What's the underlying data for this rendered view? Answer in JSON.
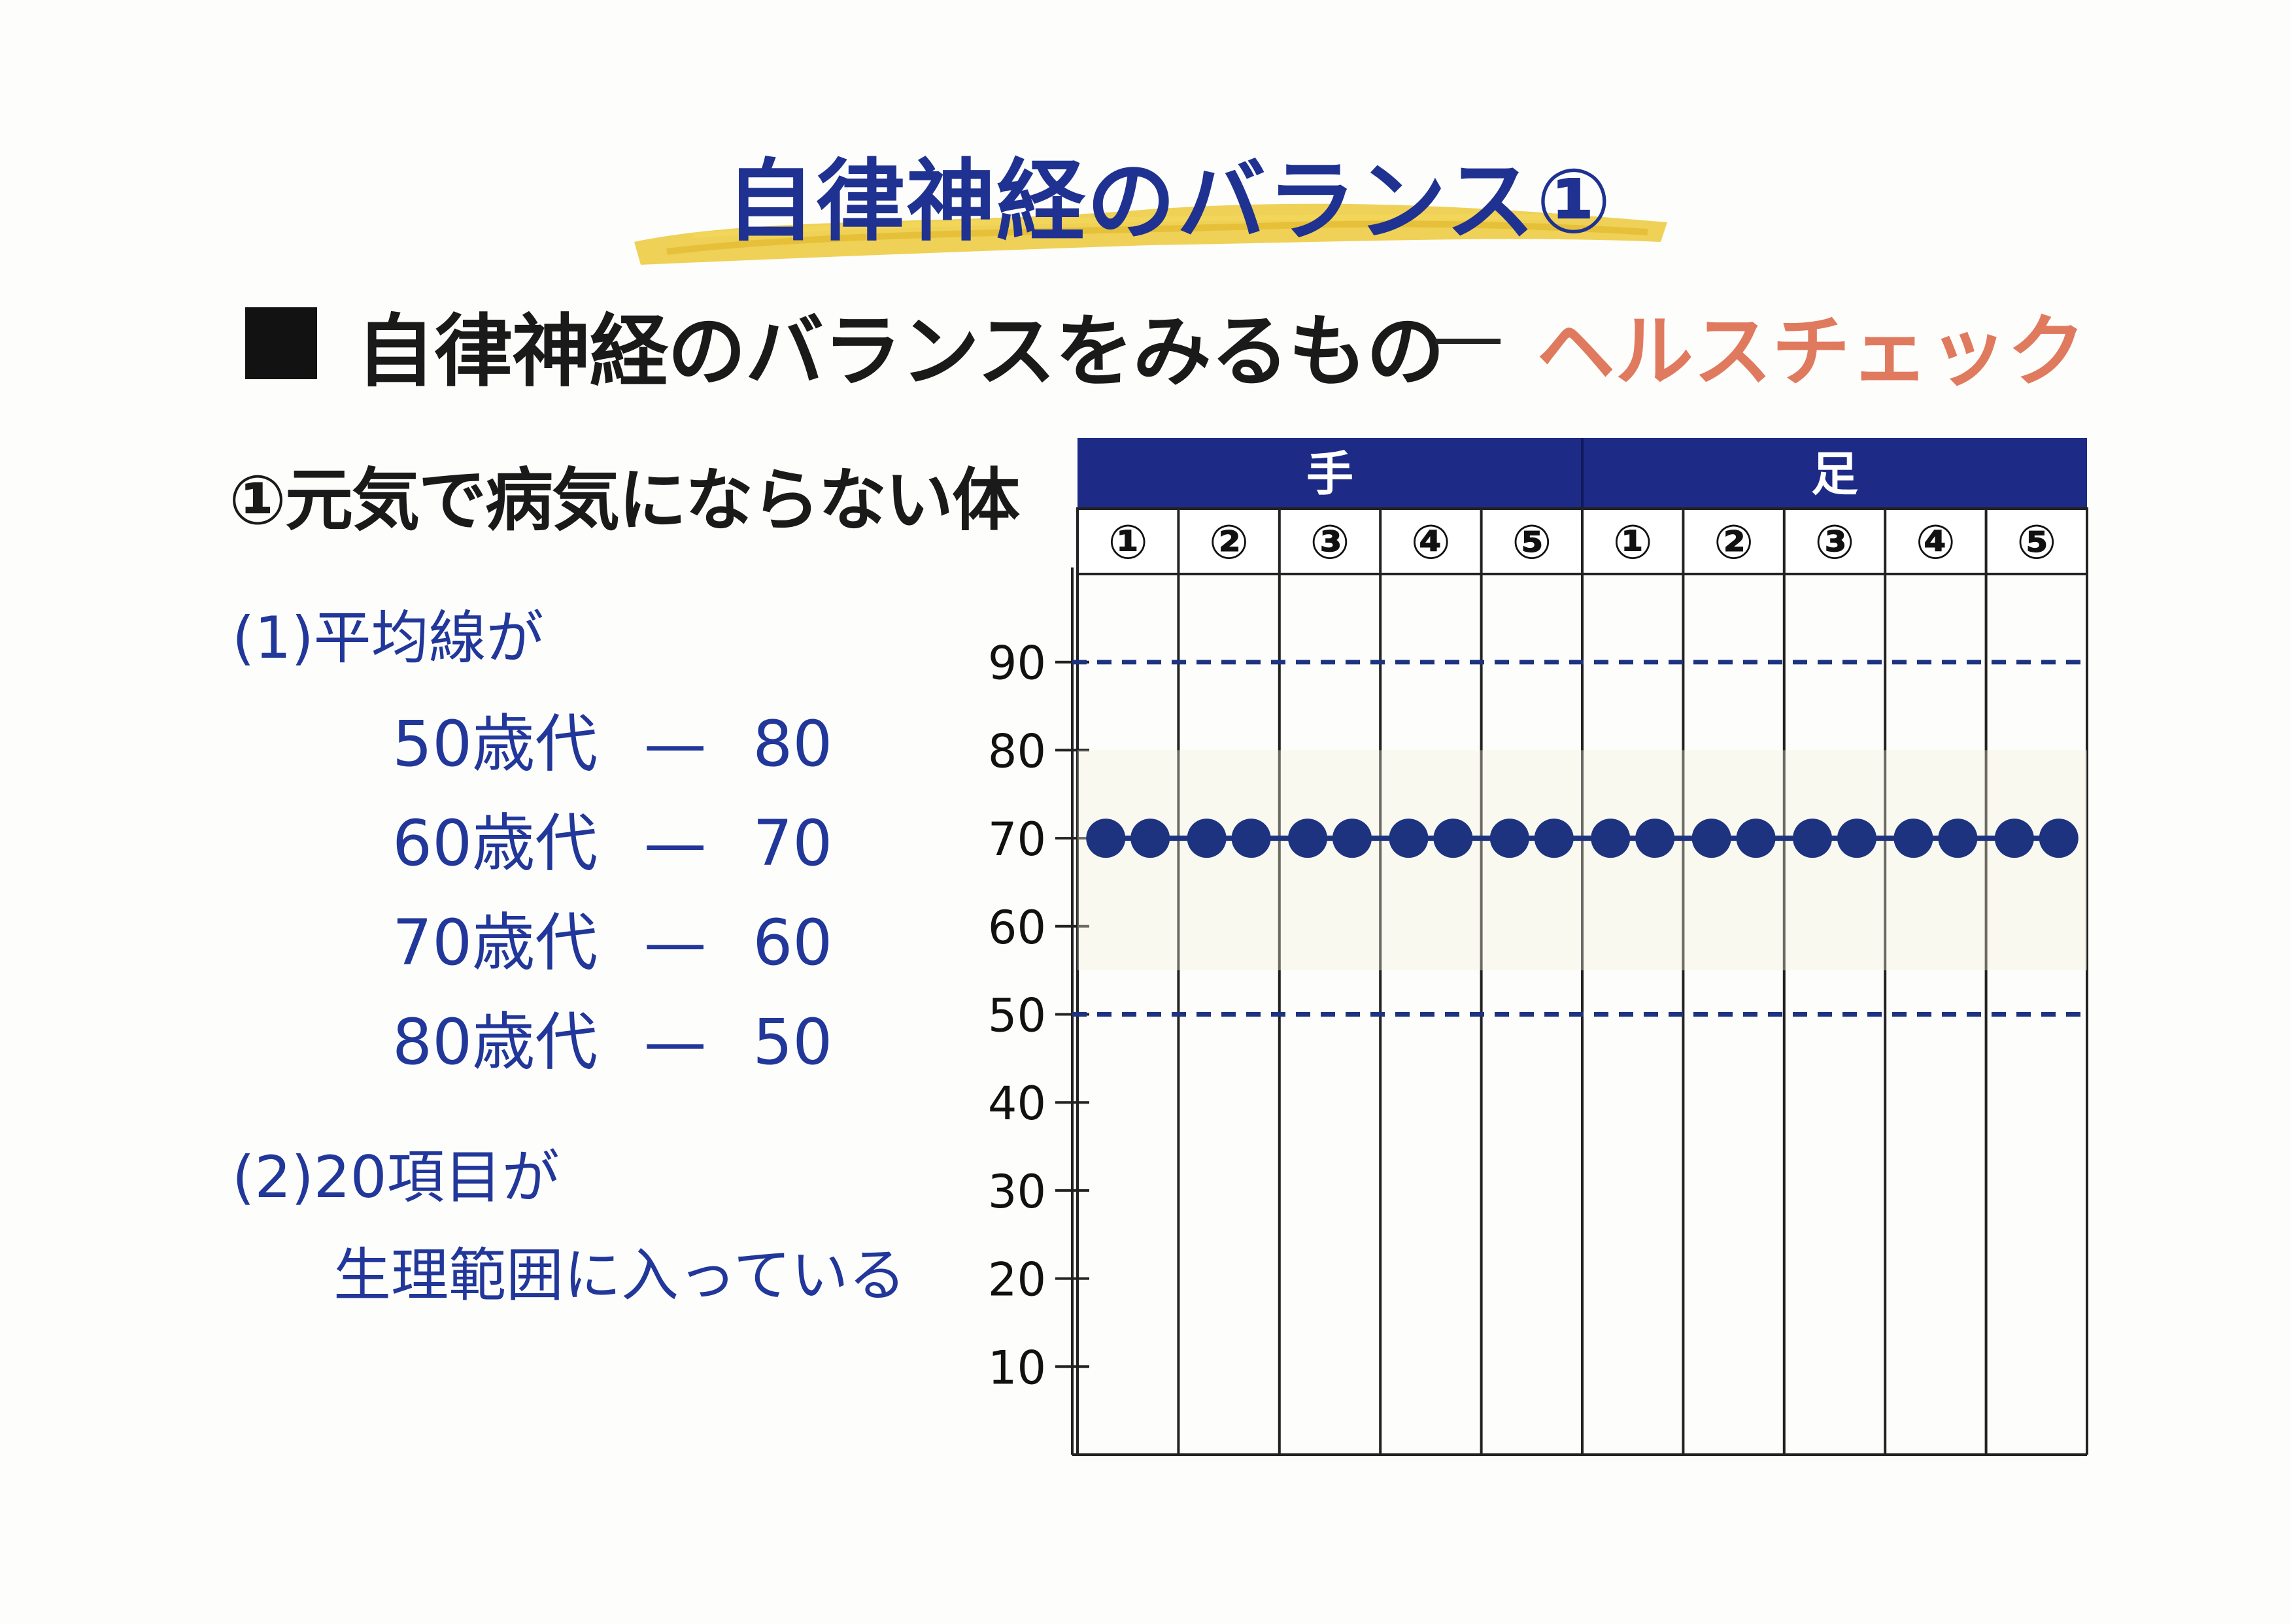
{
  "title": "自律神経のバランス①",
  "subtitle": {
    "main": "自律神経のバランスをみるもの",
    "accent": "ヘルスチェック"
  },
  "section_title": "①元気で病気にならない体",
  "criteria": {
    "c1": "(1)平均線が",
    "ages": [
      {
        "age": "50歳代",
        "dash": "—",
        "value": "80"
      },
      {
        "age": "60歳代",
        "dash": "—",
        "value": "70"
      },
      {
        "age": "70歳代",
        "dash": "—",
        "value": "60"
      },
      {
        "age": "80歳代",
        "dash": "—",
        "value": "50"
      }
    ],
    "c2": "(2)20項目が",
    "c3": "生理範囲に入っている"
  },
  "colors": {
    "navy": "#1f2f8f",
    "header": "#1e2b86",
    "accent": "#e07a5f",
    "dot": "#1d3380",
    "brush": "#e8c840"
  },
  "chart_data": {
    "type": "scatter",
    "groups": [
      {
        "name": "手",
        "columns": [
          "①",
          "②",
          "③",
          "④",
          "⑤"
        ]
      },
      {
        "name": "足",
        "columns": [
          "①",
          "②",
          "③",
          "④",
          "⑤"
        ]
      }
    ],
    "yticks": [
      "10",
      "20",
      "30",
      "40",
      "50",
      "60",
      "70",
      "80",
      "90"
    ],
    "ylim": [
      0,
      100
    ],
    "reference_lines": [
      90,
      50
    ],
    "points_per_column": 2,
    "values": [
      70,
      70,
      70,
      70,
      70,
      70,
      70,
      70,
      70,
      70,
      70,
      70,
      70,
      70,
      70,
      70,
      70,
      70,
      70,
      70
    ]
  }
}
